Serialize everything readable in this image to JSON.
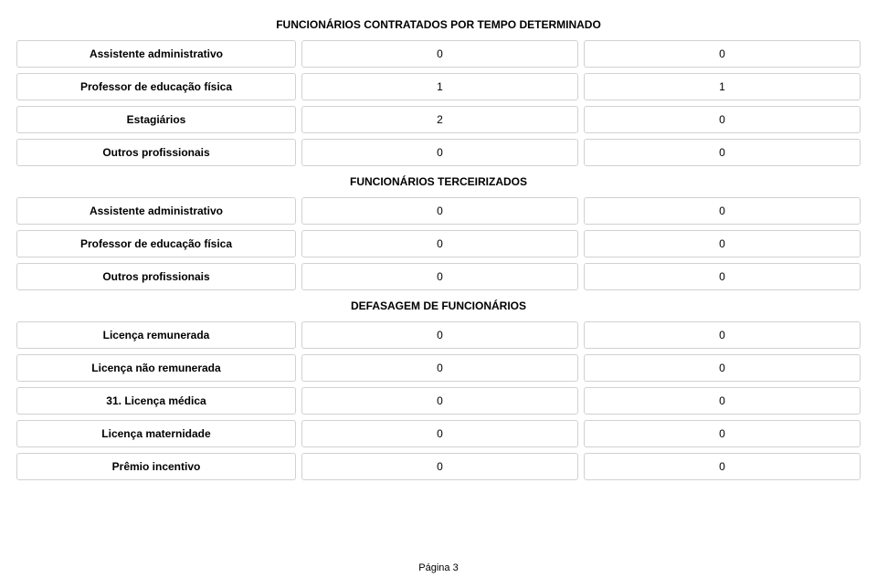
{
  "border_color": "#d0d1d2",
  "sections": [
    {
      "title": "FUNCIONÁRIOS CONTRATADOS POR TEMPO DETERMINADO",
      "rows": [
        {
          "label": "Assistente administrativo",
          "v1": "0",
          "v2": "0"
        },
        {
          "label": "Professor de educação física",
          "v1": "1",
          "v2": "1"
        },
        {
          "label": "Estagiários",
          "v1": "2",
          "v2": "0"
        },
        {
          "label": "Outros profissionais",
          "v1": "0",
          "v2": "0"
        }
      ]
    },
    {
      "title": "FUNCIONÁRIOS TERCEIRIZADOS",
      "rows": [
        {
          "label": "Assistente administrativo",
          "v1": "0",
          "v2": "0"
        },
        {
          "label": "Professor de educação física",
          "v1": "0",
          "v2": "0"
        },
        {
          "label": "Outros profissionais",
          "v1": "0",
          "v2": "0"
        }
      ]
    },
    {
      "title": "DEFASAGEM DE FUNCIONÁRIOS",
      "rows": [
        {
          "label": "Licença remunerada",
          "v1": "0",
          "v2": "0"
        },
        {
          "label": "Licença não remunerada",
          "v1": "0",
          "v2": "0"
        },
        {
          "label": "31. Licença médica",
          "v1": "0",
          "v2": "0"
        },
        {
          "label": "Licença maternidade",
          "v1": "0",
          "v2": "0"
        },
        {
          "label": "Prêmio incentivo",
          "v1": "0",
          "v2": "0"
        }
      ]
    }
  ],
  "footer": "Página 3"
}
